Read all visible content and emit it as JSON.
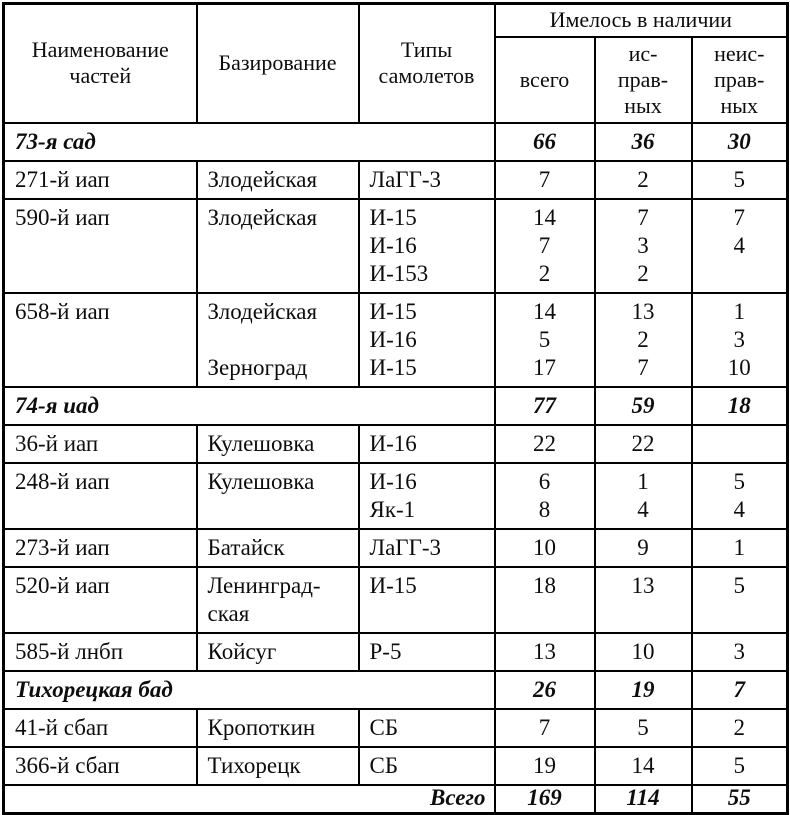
{
  "header": {
    "col_unit": "Наименование\nчастей",
    "col_base": "Базирование",
    "col_types": "Типы\nсамолетов",
    "col_avail": "Имелось в наличии",
    "col_total": "всего",
    "col_serviceable": "ис-\nправ-\nных",
    "col_unserviceable": "неис-\nправ-\nных"
  },
  "rows": [
    {
      "type": "section",
      "name": "73-я сад",
      "total": "66",
      "serviceable": "36",
      "unserviceable": "30"
    },
    {
      "type": "data",
      "unit": "271-й иап",
      "base": "Злодейская",
      "types": "ЛаГГ-3",
      "total": "7",
      "serviceable": "2",
      "unserviceable": "5"
    },
    {
      "type": "data",
      "unit": "590-й иап",
      "base": "Злодейская",
      "types": "И-15\nИ-16\nИ-153",
      "total": "14\n7\n2",
      "serviceable": "7\n3\n2",
      "unserviceable": "7\n4"
    },
    {
      "type": "data",
      "unit": "658-й иап",
      "base": "Злодейская\n\nЗерноград",
      "types": "И-15\nИ-16\nИ-15",
      "total": "14\n5\n17",
      "serviceable": "13\n2\n7",
      "unserviceable": "1\n3\n10"
    },
    {
      "type": "section",
      "name": "74-я иад",
      "total": "77",
      "serviceable": "59",
      "unserviceable": "18"
    },
    {
      "type": "data",
      "unit": "36-й иап",
      "base": "Кулешовка",
      "types": "И-16",
      "total": "22",
      "serviceable": "22",
      "unserviceable": ""
    },
    {
      "type": "data",
      "unit": "248-й иап",
      "base": "Кулешовка",
      "types": "И-16\nЯк-1",
      "total": "6\n8",
      "serviceable": "1\n4",
      "unserviceable": "5\n4"
    },
    {
      "type": "data",
      "unit": "273-й иап",
      "base": "Батайск",
      "types": "ЛаГГ-3",
      "total": "10",
      "serviceable": "9",
      "unserviceable": "1"
    },
    {
      "type": "data",
      "unit": "520-й иап",
      "base": "Ленинград-\nская",
      "types": "И-15",
      "total": "18",
      "serviceable": "13",
      "unserviceable": "5"
    },
    {
      "type": "data",
      "unit": "585-й лнбп",
      "base": "Койсуг",
      "types": "Р-5",
      "total": "13",
      "serviceable": "10",
      "unserviceable": "3"
    },
    {
      "type": "section",
      "name": "Тихорецкая бад",
      "total": "26",
      "serviceable": "19",
      "unserviceable": "7"
    },
    {
      "type": "data",
      "unit": "41-й сбап",
      "base": "Кропоткин",
      "types": "СБ",
      "total": "7",
      "serviceable": "5",
      "unserviceable": "2"
    },
    {
      "type": "data",
      "unit": "366-й сбап",
      "base": "Тихорецк",
      "types": "СБ",
      "total": "19",
      "serviceable": "14",
      "unserviceable": "5"
    }
  ],
  "footer": {
    "label": "Всего",
    "total": "169",
    "serviceable": "114",
    "unserviceable": "55"
  }
}
